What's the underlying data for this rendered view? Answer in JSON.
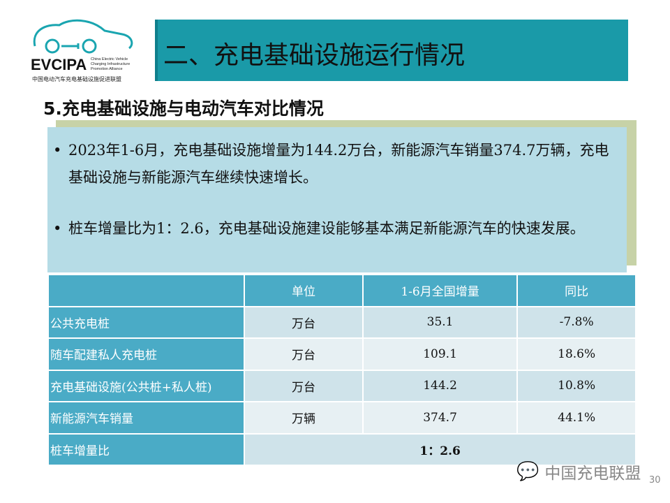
{
  "logo": {
    "name": "EVCIPA",
    "en": [
      "China Electric Vehicle",
      "Charging Infrastructure",
      "Promotion Alliance"
    ],
    "cn": "中国电动汽车充电基础设施促进联盟"
  },
  "banner": {
    "title": "二、充电基础设施运行情况"
  },
  "subtitle": "5.充电基础设施与电动汽车对比情况",
  "bullets": [
    "2023年1-6月，充电基础设施增量为144.2万台，新能源汽车销量374.7万辆，充电基础设施与新能源汽车继续快速增长。",
    "桩车增量比为1：2.6，充电基础设施建设能够基本满足新能源汽车的快速发展。"
  ],
  "table": {
    "headers": [
      "",
      "单位",
      "1-6月全国增量",
      "同比"
    ],
    "rows": [
      [
        "公共充电桩",
        "万台",
        "35.1",
        "-7.8%"
      ],
      [
        "随车配建私人充电桩",
        "万台",
        "109.1",
        "18.6%"
      ],
      [
        "充电基础设施(公共桩+私人桩)",
        "万台",
        "144.2",
        "10.8%"
      ],
      [
        "新能源汽车销量",
        "万辆",
        "374.7",
        "44.1%"
      ]
    ],
    "last": {
      "label": "桩车增量比",
      "value": "1：2.6"
    }
  },
  "watermark": "中国充电联盟",
  "page_number": "30",
  "colors": {
    "banner": "#1a9aa8",
    "header": "#4aabc6",
    "box": "#b6dce6",
    "olive": "#c7d2a7"
  }
}
